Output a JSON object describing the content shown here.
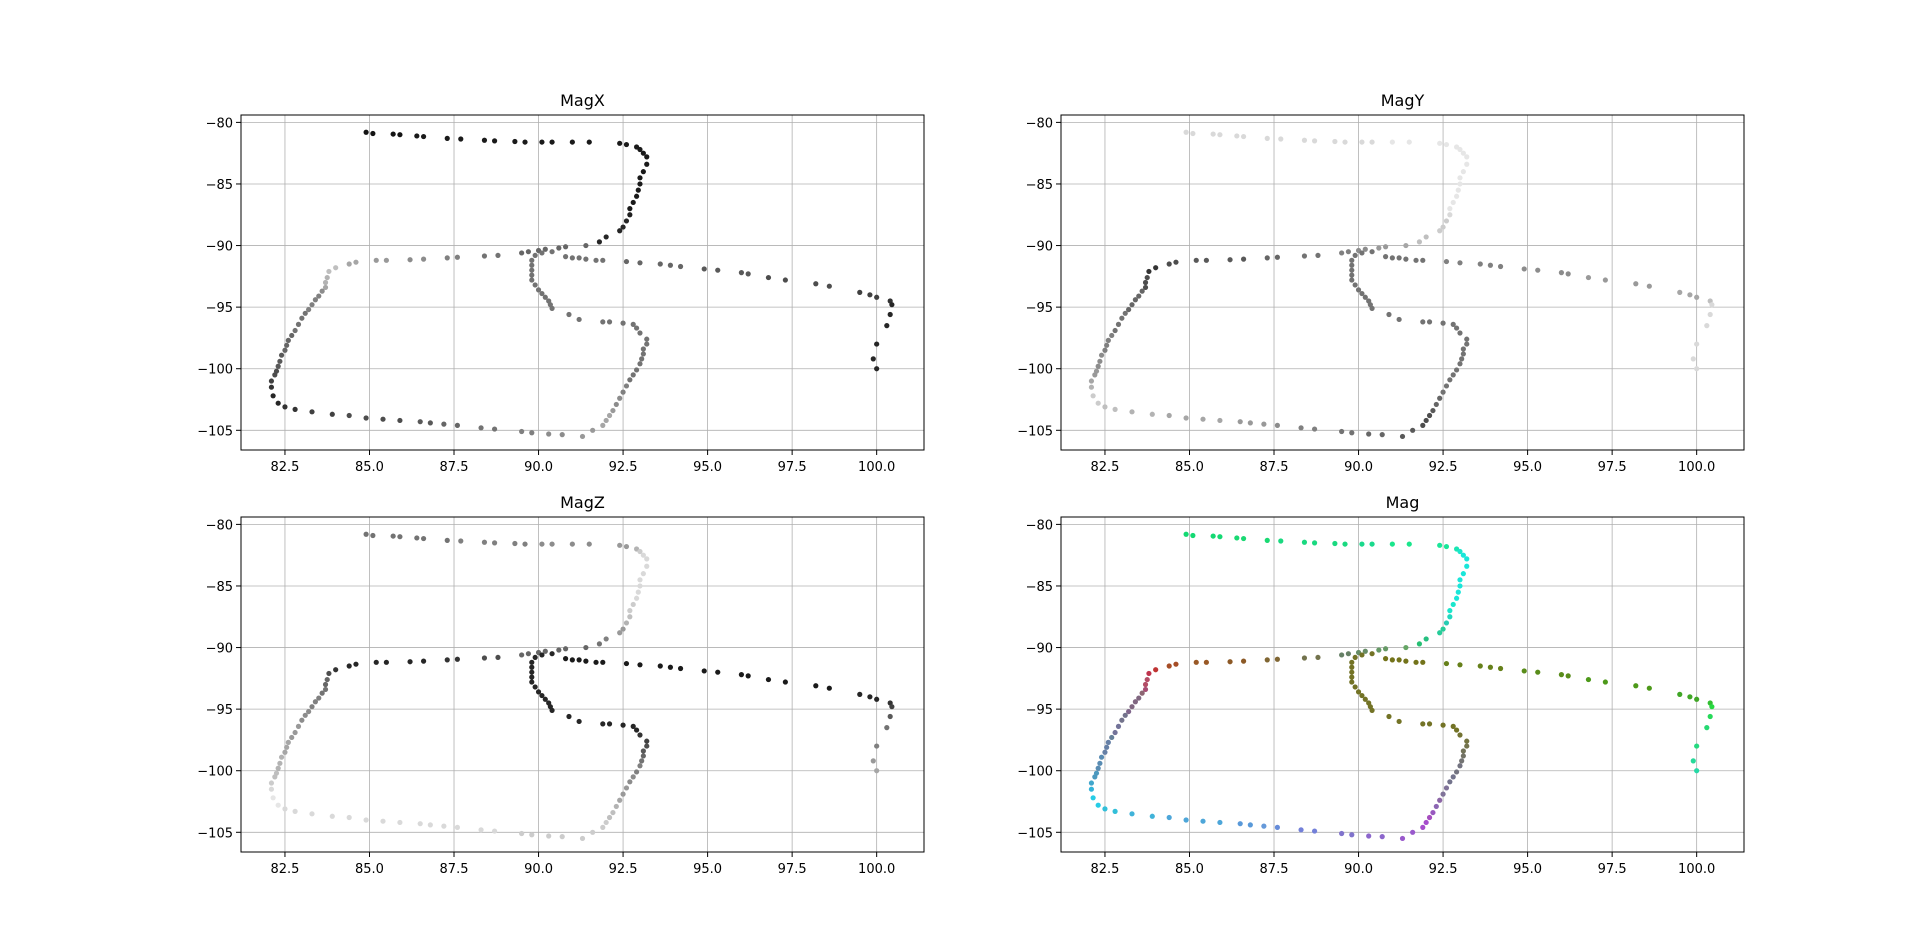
{
  "chart_data": {
    "type": "scatter",
    "grid": true,
    "xlim": [
      81.2,
      101.4
    ],
    "ylim": [
      -106.6,
      -79.4
    ],
    "xticks": [
      "82.5",
      "85.0",
      "87.5",
      "90.0",
      "92.5",
      "95.0",
      "97.5",
      "100.0"
    ],
    "yticks": [
      "−80",
      "−85",
      "−90",
      "−95",
      "−100",
      "−105"
    ],
    "panels": [
      {
        "title": "MagX",
        "color_by": "x_gray"
      },
      {
        "title": "MagY",
        "color_by": "y_gray"
      },
      {
        "title": "MagZ",
        "color_by": "z_gray"
      },
      {
        "title": "Mag",
        "color_by": "rgb"
      }
    ],
    "points": [
      [
        84.9,
        -80.8,
        0.08,
        0.85,
        0.45
      ],
      [
        85.1,
        -80.9,
        0.08,
        0.85,
        0.45
      ],
      [
        85.7,
        -80.95,
        0.08,
        0.85,
        0.45
      ],
      [
        85.9,
        -81.0,
        0.08,
        0.85,
        0.45
      ],
      [
        86.4,
        -81.1,
        0.1,
        0.85,
        0.45
      ],
      [
        86.6,
        -81.15,
        0.1,
        0.85,
        0.45
      ],
      [
        87.3,
        -81.3,
        0.1,
        0.85,
        0.45
      ],
      [
        87.7,
        -81.35,
        0.1,
        0.85,
        0.5
      ],
      [
        88.4,
        -81.45,
        0.1,
        0.85,
        0.5
      ],
      [
        88.7,
        -81.5,
        0.1,
        0.85,
        0.5
      ],
      [
        89.3,
        -81.55,
        0.1,
        0.85,
        0.5
      ],
      [
        89.6,
        -81.6,
        0.1,
        0.85,
        0.5
      ],
      [
        90.1,
        -81.6,
        0.1,
        0.85,
        0.55
      ],
      [
        90.4,
        -81.6,
        0.1,
        0.85,
        0.55
      ],
      [
        91.0,
        -81.6,
        0.1,
        0.9,
        0.55
      ],
      [
        91.5,
        -81.6,
        0.1,
        0.9,
        0.55
      ],
      [
        92.4,
        -81.7,
        0.1,
        0.9,
        0.6
      ],
      [
        92.6,
        -81.8,
        0.1,
        0.9,
        0.6
      ],
      [
        92.9,
        -82.0,
        0.1,
        0.9,
        0.7
      ],
      [
        93.0,
        -82.2,
        0.1,
        0.9,
        0.8
      ],
      [
        93.1,
        -82.5,
        0.1,
        0.9,
        0.85
      ],
      [
        93.2,
        -82.8,
        0.1,
        0.9,
        0.85
      ],
      [
        93.2,
        -83.4,
        0.1,
        0.9,
        0.85
      ],
      [
        93.1,
        -84.0,
        0.1,
        0.9,
        0.85
      ],
      [
        93.0,
        -84.5,
        0.1,
        0.9,
        0.85
      ],
      [
        93.0,
        -85.0,
        0.1,
        0.9,
        0.85
      ],
      [
        92.95,
        -85.5,
        0.1,
        0.9,
        0.85
      ],
      [
        92.9,
        -86.0,
        0.1,
        0.9,
        0.85
      ],
      [
        92.8,
        -86.5,
        0.1,
        0.9,
        0.8
      ],
      [
        92.7,
        -87.0,
        0.1,
        0.9,
        0.8
      ],
      [
        92.7,
        -87.5,
        0.12,
        0.85,
        0.75
      ],
      [
        92.6,
        -88.0,
        0.15,
        0.8,
        0.7
      ],
      [
        92.5,
        -88.5,
        0.15,
        0.8,
        0.6
      ],
      [
        92.4,
        -88.8,
        0.15,
        0.8,
        0.6
      ],
      [
        92.0,
        -89.3,
        0.15,
        0.75,
        0.5
      ],
      [
        91.8,
        -89.7,
        0.15,
        0.75,
        0.45
      ],
      [
        91.4,
        -90.0,
        0.4,
        0.65,
        0.4
      ],
      [
        90.8,
        -90.1,
        0.4,
        0.6,
        0.4
      ],
      [
        90.6,
        -90.2,
        0.4,
        0.6,
        0.4
      ],
      [
        90.2,
        -90.3,
        0.4,
        0.55,
        0.4
      ],
      [
        90.0,
        -90.4,
        0.4,
        0.55,
        0.4
      ],
      [
        89.7,
        -90.5,
        0.4,
        0.5,
        0.4
      ],
      [
        89.5,
        -90.6,
        0.4,
        0.5,
        0.4
      ],
      [
        88.8,
        -90.8,
        0.45,
        0.45,
        0.3
      ],
      [
        88.4,
        -90.85,
        0.45,
        0.45,
        0.3
      ],
      [
        87.6,
        -90.95,
        0.5,
        0.4,
        0.2
      ],
      [
        87.3,
        -91.0,
        0.5,
        0.4,
        0.2
      ],
      [
        86.6,
        -91.1,
        0.55,
        0.35,
        0.15
      ],
      [
        86.2,
        -91.15,
        0.55,
        0.35,
        0.15
      ],
      [
        85.5,
        -91.2,
        0.6,
        0.35,
        0.15
      ],
      [
        85.2,
        -91.2,
        0.6,
        0.35,
        0.15
      ],
      [
        84.6,
        -91.35,
        0.65,
        0.3,
        0.15
      ],
      [
        84.4,
        -91.5,
        0.65,
        0.3,
        0.15
      ],
      [
        84.0,
        -91.8,
        0.75,
        0.2,
        0.2
      ],
      [
        83.8,
        -92.1,
        0.75,
        0.2,
        0.3
      ],
      [
        83.75,
        -92.6,
        0.7,
        0.3,
        0.4
      ],
      [
        83.7,
        -93.0,
        0.7,
        0.3,
        0.4
      ],
      [
        83.7,
        -93.4,
        0.65,
        0.3,
        0.45
      ],
      [
        83.6,
        -93.7,
        0.55,
        0.4,
        0.45
      ],
      [
        83.5,
        -94.1,
        0.5,
        0.4,
        0.5
      ],
      [
        83.4,
        -94.4,
        0.5,
        0.4,
        0.5
      ],
      [
        83.3,
        -94.8,
        0.5,
        0.4,
        0.5
      ],
      [
        83.2,
        -95.2,
        0.5,
        0.4,
        0.55
      ],
      [
        83.1,
        -95.5,
        0.45,
        0.45,
        0.55
      ],
      [
        83.0,
        -95.9,
        0.45,
        0.45,
        0.55
      ],
      [
        82.9,
        -96.4,
        0.45,
        0.45,
        0.6
      ],
      [
        82.8,
        -96.9,
        0.45,
        0.45,
        0.6
      ],
      [
        82.7,
        -97.3,
        0.4,
        0.5,
        0.6
      ],
      [
        82.6,
        -97.7,
        0.4,
        0.5,
        0.65
      ],
      [
        82.55,
        -98.1,
        0.4,
        0.5,
        0.65
      ],
      [
        82.5,
        -98.5,
        0.4,
        0.5,
        0.65
      ],
      [
        82.4,
        -98.9,
        0.35,
        0.55,
        0.7
      ],
      [
        82.35,
        -99.4,
        0.35,
        0.55,
        0.7
      ],
      [
        82.3,
        -99.8,
        0.35,
        0.55,
        0.7
      ],
      [
        82.25,
        -100.2,
        0.3,
        0.6,
        0.75
      ],
      [
        82.2,
        -100.5,
        0.3,
        0.6,
        0.75
      ],
      [
        82.1,
        -101.0,
        0.25,
        0.65,
        0.8
      ],
      [
        82.1,
        -101.5,
        0.2,
        0.7,
        0.85
      ],
      [
        82.15,
        -102.2,
        0.15,
        0.8,
        0.9
      ],
      [
        82.3,
        -102.8,
        0.15,
        0.8,
        0.9
      ],
      [
        82.5,
        -103.1,
        0.2,
        0.75,
        0.85
      ],
      [
        82.8,
        -103.3,
        0.2,
        0.75,
        0.85
      ],
      [
        83.3,
        -103.5,
        0.25,
        0.7,
        0.85
      ],
      [
        83.9,
        -103.7,
        0.25,
        0.7,
        0.85
      ],
      [
        84.4,
        -103.8,
        0.3,
        0.65,
        0.85
      ],
      [
        84.9,
        -104.0,
        0.3,
        0.65,
        0.85
      ],
      [
        85.4,
        -104.1,
        0.3,
        0.65,
        0.85
      ],
      [
        85.9,
        -104.2,
        0.3,
        0.65,
        0.85
      ],
      [
        86.5,
        -104.3,
        0.35,
        0.6,
        0.85
      ],
      [
        86.8,
        -104.4,
        0.35,
        0.6,
        0.85
      ],
      [
        87.2,
        -104.5,
        0.4,
        0.6,
        0.85
      ],
      [
        87.6,
        -104.6,
        0.4,
        0.55,
        0.85
      ],
      [
        88.3,
        -104.8,
        0.45,
        0.5,
        0.85
      ],
      [
        88.7,
        -104.9,
        0.45,
        0.5,
        0.85
      ],
      [
        89.5,
        -105.1,
        0.5,
        0.45,
        0.8
      ],
      [
        89.8,
        -105.2,
        0.5,
        0.45,
        0.8
      ],
      [
        90.3,
        -105.3,
        0.55,
        0.4,
        0.8
      ],
      [
        90.7,
        -105.35,
        0.55,
        0.4,
        0.8
      ],
      [
        91.3,
        -105.5,
        0.6,
        0.35,
        0.8
      ],
      [
        91.6,
        -105.0,
        0.6,
        0.35,
        0.8
      ],
      [
        91.9,
        -104.6,
        0.65,
        0.3,
        0.8
      ],
      [
        92.0,
        -104.2,
        0.65,
        0.3,
        0.8
      ],
      [
        92.1,
        -103.8,
        0.65,
        0.3,
        0.75
      ],
      [
        92.2,
        -103.4,
        0.6,
        0.35,
        0.75
      ],
      [
        92.3,
        -102.9,
        0.55,
        0.4,
        0.7
      ],
      [
        92.4,
        -102.4,
        0.55,
        0.4,
        0.65
      ],
      [
        92.5,
        -101.9,
        0.5,
        0.45,
        0.6
      ],
      [
        92.6,
        -101.4,
        0.5,
        0.45,
        0.6
      ],
      [
        92.7,
        -100.9,
        0.45,
        0.45,
        0.55
      ],
      [
        92.8,
        -100.5,
        0.45,
        0.45,
        0.55
      ],
      [
        92.9,
        -100.1,
        0.45,
        0.45,
        0.5
      ],
      [
        93.0,
        -99.6,
        0.45,
        0.45,
        0.5
      ],
      [
        93.05,
        -99.2,
        0.45,
        0.45,
        0.45
      ],
      [
        93.1,
        -98.8,
        0.45,
        0.45,
        0.4
      ],
      [
        93.1,
        -98.4,
        0.45,
        0.45,
        0.35
      ],
      [
        93.2,
        -98.0,
        0.45,
        0.45,
        0.3
      ],
      [
        93.2,
        -97.6,
        0.45,
        0.45,
        0.25
      ],
      [
        93.0,
        -97.1,
        0.45,
        0.45,
        0.2
      ],
      [
        92.9,
        -96.7,
        0.45,
        0.45,
        0.15
      ],
      [
        92.8,
        -96.4,
        0.45,
        0.45,
        0.15
      ],
      [
        92.5,
        -96.3,
        0.45,
        0.45,
        0.15
      ],
      [
        92.1,
        -96.2,
        0.45,
        0.45,
        0.15
      ],
      [
        91.9,
        -96.2,
        0.45,
        0.45,
        0.15
      ],
      [
        91.2,
        -96.0,
        0.45,
        0.45,
        0.15
      ],
      [
        90.9,
        -95.6,
        0.45,
        0.45,
        0.15
      ],
      [
        90.4,
        -95.1,
        0.45,
        0.45,
        0.15
      ],
      [
        90.35,
        -94.8,
        0.45,
        0.45,
        0.15
      ],
      [
        90.3,
        -94.5,
        0.45,
        0.45,
        0.15
      ],
      [
        90.2,
        -94.2,
        0.45,
        0.45,
        0.15
      ],
      [
        90.1,
        -93.9,
        0.45,
        0.45,
        0.15
      ],
      [
        90.0,
        -93.6,
        0.45,
        0.45,
        0.15
      ],
      [
        89.9,
        -93.2,
        0.45,
        0.45,
        0.15
      ],
      [
        89.8,
        -92.8,
        0.45,
        0.45,
        0.15
      ],
      [
        89.8,
        -92.4,
        0.45,
        0.45,
        0.15
      ],
      [
        89.8,
        -92.0,
        0.45,
        0.45,
        0.15
      ],
      [
        89.8,
        -91.6,
        0.45,
        0.45,
        0.15
      ],
      [
        89.8,
        -91.2,
        0.45,
        0.45,
        0.15
      ],
      [
        89.9,
        -90.8,
        0.45,
        0.45,
        0.15
      ],
      [
        90.1,
        -90.6,
        0.45,
        0.45,
        0.15
      ],
      [
        90.4,
        -90.5,
        0.45,
        0.45,
        0.15
      ],
      [
        90.8,
        -90.9,
        0.45,
        0.45,
        0.1
      ],
      [
        91.0,
        -91.0,
        0.45,
        0.45,
        0.1
      ],
      [
        91.2,
        -91.0,
        0.45,
        0.45,
        0.1
      ],
      [
        91.4,
        -91.1,
        0.45,
        0.45,
        0.1
      ],
      [
        91.7,
        -91.2,
        0.45,
        0.45,
        0.1
      ],
      [
        91.9,
        -91.2,
        0.45,
        0.45,
        0.1
      ],
      [
        92.6,
        -91.3,
        0.4,
        0.5,
        0.1
      ],
      [
        93.0,
        -91.4,
        0.4,
        0.5,
        0.1
      ],
      [
        93.6,
        -91.5,
        0.4,
        0.5,
        0.1
      ],
      [
        93.9,
        -91.6,
        0.4,
        0.5,
        0.1
      ],
      [
        94.2,
        -91.7,
        0.4,
        0.5,
        0.1
      ],
      [
        94.9,
        -91.9,
        0.35,
        0.55,
        0.1
      ],
      [
        95.3,
        -92.0,
        0.35,
        0.55,
        0.1
      ],
      [
        96.0,
        -92.2,
        0.35,
        0.55,
        0.1
      ],
      [
        96.2,
        -92.3,
        0.35,
        0.55,
        0.1
      ],
      [
        96.8,
        -92.6,
        0.3,
        0.6,
        0.1
      ],
      [
        97.3,
        -92.8,
        0.3,
        0.6,
        0.1
      ],
      [
        98.2,
        -93.1,
        0.3,
        0.6,
        0.1
      ],
      [
        98.6,
        -93.3,
        0.3,
        0.6,
        0.1
      ],
      [
        99.5,
        -93.8,
        0.25,
        0.65,
        0.15
      ],
      [
        99.8,
        -94.0,
        0.25,
        0.65,
        0.15
      ],
      [
        100.0,
        -94.2,
        0.25,
        0.65,
        0.15
      ],
      [
        100.4,
        -94.5,
        0.2,
        0.75,
        0.2
      ],
      [
        100.45,
        -94.8,
        0.15,
        0.85,
        0.25
      ],
      [
        100.4,
        -95.6,
        0.15,
        0.85,
        0.35
      ],
      [
        100.3,
        -96.5,
        0.15,
        0.85,
        0.45
      ],
      [
        100.0,
        -98.0,
        0.15,
        0.85,
        0.5
      ],
      [
        99.9,
        -99.2,
        0.15,
        0.85,
        0.6
      ],
      [
        100.0,
        -100.0,
        0.15,
        0.85,
        0.65
      ]
    ]
  }
}
